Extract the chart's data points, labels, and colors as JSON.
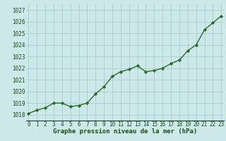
{
  "x": [
    0,
    1,
    2,
    3,
    4,
    5,
    6,
    7,
    8,
    9,
    10,
    11,
    12,
    13,
    14,
    15,
    16,
    17,
    18,
    19,
    20,
    21,
    22,
    23
  ],
  "y": [
    1018.1,
    1018.4,
    1018.6,
    1019.0,
    1019.0,
    1018.7,
    1018.8,
    1019.0,
    1019.8,
    1020.4,
    1021.3,
    1021.7,
    1021.9,
    1022.2,
    1021.7,
    1021.8,
    1022.0,
    1022.4,
    1022.7,
    1023.5,
    1024.0,
    1025.3,
    1025.9,
    1026.5
  ],
  "line_color": "#2d6a2d",
  "marker": "D",
  "marker_size": 2.2,
  "bg_color": "#cce8e8",
  "grid_color": "#aacccc",
  "xlabel": "Graphe pression niveau de la mer (hPa)",
  "xlabel_color": "#1a4a1a",
  "tick_color": "#1a4a1a",
  "ylim_low": 1017.5,
  "ylim_high": 1027.5,
  "yticks": [
    1018,
    1019,
    1020,
    1021,
    1022,
    1023,
    1024,
    1025,
    1026,
    1027
  ],
  "xticks": [
    0,
    1,
    2,
    3,
    4,
    5,
    6,
    7,
    8,
    9,
    10,
    11,
    12,
    13,
    14,
    15,
    16,
    17,
    18,
    19,
    20,
    21,
    22,
    23
  ],
  "linewidth": 1.0,
  "tick_fontsize": 5.5,
  "xlabel_fontsize": 6.5
}
